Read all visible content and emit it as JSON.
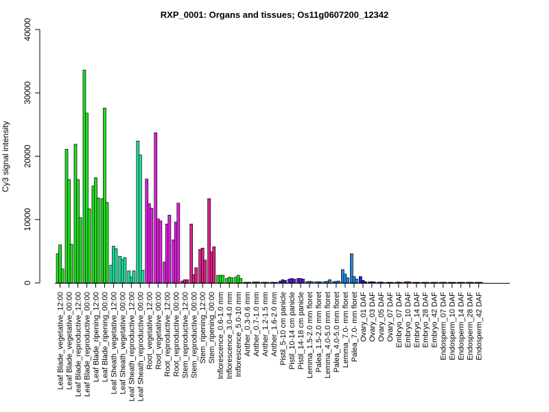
{
  "chart_data": {
    "type": "bar",
    "title": "RXP_0001: Organs and tissues; Os11g0607200_12342",
    "xlabel": "",
    "ylabel": "Cy3 signal intensity",
    "ylim": [
      0,
      40000
    ],
    "yticks": [
      0,
      10000,
      20000,
      30000,
      40000
    ],
    "grid": false,
    "legend": "none",
    "groups": [
      {
        "label": "Leaf Blade_vegetative_12:00",
        "color": "#22dd22",
        "values": [
          4600,
          6000,
          2200
        ]
      },
      {
        "label": "Leaf Blade_vegetative_00:00",
        "color": "#22dd22",
        "values": [
          21100,
          16300,
          6100
        ]
      },
      {
        "label": "Leaf Blade_reproductive_12:00",
        "color": "#22dd22",
        "values": [
          21900,
          16300,
          10300
        ]
      },
      {
        "label": "Leaf Blade_reproductive_00:00",
        "color": "#22dd22",
        "values": [
          33600,
          26800,
          11700
        ]
      },
      {
        "label": "Leaf Blade_ripening_12:00",
        "color": "#22dd22",
        "values": [
          15300,
          16600,
          13400
        ]
      },
      {
        "label": "Leaf Blade_ripening_00:00",
        "color": "#22dd22",
        "values": [
          13300,
          27600,
          12700
        ]
      },
      {
        "label": "Leaf Sheath_vegetative_12:00",
        "color": "#22dda0",
        "values": [
          2800,
          5800,
          5400
        ]
      },
      {
        "label": "Leaf Sheath_vegetative_00:00",
        "color": "#22dda0",
        "values": [
          4200,
          3700,
          4000
        ]
      },
      {
        "label": "Leaf Sheath_reproductive_12:00",
        "color": "#22dda0",
        "values": [
          1900,
          900,
          1900
        ]
      },
      {
        "label": "Leaf Sheath_reproductive_00:00",
        "color": "#22dda0",
        "values": [
          22400,
          20200,
          2000
        ]
      },
      {
        "label": "Root_vegetative_12:00",
        "color": "#dd22dd",
        "values": [
          16400,
          12500,
          11800
        ]
      },
      {
        "label": "Root_vegetative_00:00",
        "color": "#dd22dd",
        "values": [
          23700,
          10100,
          9800
        ]
      },
      {
        "label": "Root_reproductive_12:00",
        "color": "#dd22dd",
        "values": [
          3300,
          9300,
          10700
        ]
      },
      {
        "label": "Root_reproductive_00:00",
        "color": "#dd22dd",
        "values": [
          6800,
          9600,
          12600
        ]
      },
      {
        "label": "Stem_reproductive_12:00",
        "color": "#dd2288",
        "values": [
          300,
          500,
          500
        ]
      },
      {
        "label": "Stem_reproductive_00:00",
        "color": "#dd2288",
        "values": [
          9300,
          1300,
          2400
        ]
      },
      {
        "label": "Stem_ripening_12:00",
        "color": "#dd2288",
        "values": [
          5300,
          5500,
          3600
        ]
      },
      {
        "label": "Stem_ripening_00:00",
        "color": "#dd2288",
        "values": [
          13300,
          4900,
          5700
        ]
      },
      {
        "label": "Inflorescence_0.6-1.0 mm",
        "color": "#22dd22",
        "values": [
          1200,
          1200,
          1200
        ]
      },
      {
        "label": "Inflorescence_3.0-4.0 mm",
        "color": "#22dd22",
        "values": [
          700,
          900,
          800
        ]
      },
      {
        "label": "Inflorescence_5.0-10 mm",
        "color": "#22dd22",
        "values": [
          900,
          1200,
          700
        ]
      },
      {
        "label": "Anther_0.3-0.6 mm",
        "color": "#dd2222",
        "values": [
          100,
          100,
          100
        ]
      },
      {
        "label": "Anther_0.7-1.0 mm",
        "color": "#dd2222",
        "values": [
          150,
          150,
          150
        ]
      },
      {
        "label": "Anther_1.2-1.5 mm",
        "color": "#dd2222",
        "values": [
          100,
          120,
          100
        ]
      },
      {
        "label": "Anther_1.6-2.0 mm",
        "color": "#dd2222",
        "values": [
          100,
          100,
          100
        ]
      },
      {
        "label": "Pistil_5-10 cm panicle",
        "color": "#5522dd",
        "values": [
          300,
          500,
          400
        ]
      },
      {
        "label": "Pistil_10-14 cm panicle",
        "color": "#5522dd",
        "values": [
          600,
          700,
          600
        ]
      },
      {
        "label": "Pistil_14-18 cm panicle",
        "color": "#5522dd",
        "values": [
          700,
          700,
          600
        ]
      },
      {
        "label": "Lemma_1.5-2.0 mm floret",
        "color": "#2288dd",
        "values": [
          200,
          250,
          200
        ]
      },
      {
        "label": "Palea_1.5-2.0 mm floret",
        "color": "#2288dd",
        "values": [
          150,
          200,
          150
        ]
      },
      {
        "label": "Lemma_4.0-5.0 mm floret",
        "color": "#2288dd",
        "values": [
          200,
          250,
          500
        ]
      },
      {
        "label": "Palea_4.0-5.0 mm floret",
        "color": "#2288dd",
        "values": [
          200,
          250,
          300
        ]
      },
      {
        "label": "Lemma_7.0- mm floret",
        "color": "#2288dd",
        "values": [
          2100,
          1400,
          800
        ]
      },
      {
        "label": "Palea_7.0- mm floret",
        "color": "#2288dd",
        "values": [
          4600,
          1000,
          600
        ]
      },
      {
        "label": "Ovary_01 DAF",
        "color": "#2222dd",
        "values": [
          1000,
          400,
          200
        ]
      },
      {
        "label": "Ovary_03 DAF",
        "color": "#2222dd",
        "values": [
          150,
          200,
          150
        ]
      },
      {
        "label": "Ovary_05 DAF",
        "color": "#2222dd",
        "values": [
          100,
          150,
          100
        ]
      },
      {
        "label": "Ovary_07 DAF",
        "color": "#2222dd",
        "values": [
          100,
          100,
          100
        ]
      },
      {
        "label": "Embryo_07 DAF",
        "color": "#dd2222",
        "values": [
          100,
          150,
          100
        ]
      },
      {
        "label": "Embryo_10 DAF",
        "color": "#dd2222",
        "values": [
          150,
          200,
          150
        ]
      },
      {
        "label": "Embryo_14 DAF",
        "color": "#dd2222",
        "values": [
          100,
          100,
          100
        ]
      },
      {
        "label": "Embryo_28 DAF",
        "color": "#dd2222",
        "values": [
          100,
          100,
          100
        ]
      },
      {
        "label": "Embryo_42 DAF",
        "color": "#dd2222",
        "values": [
          100,
          100,
          100
        ]
      },
      {
        "label": "Endosperm_07 DAF",
        "color": "#dd2222",
        "values": [
          100,
          100,
          100
        ]
      },
      {
        "label": "Endosperm_10 DAF",
        "color": "#dd2222",
        "values": [
          100,
          100,
          100
        ]
      },
      {
        "label": "Endosperm_14 DAF",
        "color": "#dd2222",
        "values": [
          100,
          100,
          100
        ]
      },
      {
        "label": "Endosperm_28 DAF",
        "color": "#dd2222",
        "values": [
          100,
          100,
          100
        ]
      },
      {
        "label": "Endosperm_42 DAF",
        "color": "#dd2222",
        "values": [
          100,
          100,
          100
        ]
      }
    ]
  }
}
